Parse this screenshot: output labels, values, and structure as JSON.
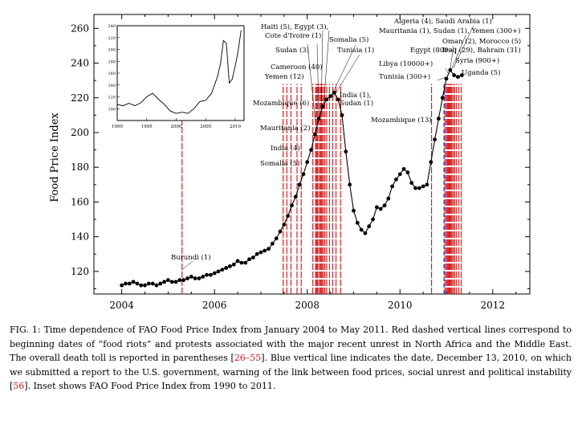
{
  "chart_data": {
    "type": "line",
    "title": "",
    "xlabel": "",
    "ylabel": "Food Price Index",
    "xlim": [
      2003.4,
      2012.8
    ],
    "ylim": [
      107,
      268
    ],
    "xticks": [
      2004,
      2006,
      2008,
      2010,
      2012
    ],
    "yticks": [
      120,
      140,
      160,
      180,
      200,
      220,
      240,
      260
    ],
    "series": [
      {
        "name": "FAO Food Price Index",
        "x": [
          2004.0,
          2004.083,
          2004.167,
          2004.25,
          2004.333,
          2004.417,
          2004.5,
          2004.583,
          2004.667,
          2004.75,
          2004.833,
          2004.917,
          2005.0,
          2005.083,
          2005.167,
          2005.25,
          2005.333,
          2005.417,
          2005.5,
          2005.583,
          2005.667,
          2005.75,
          2005.833,
          2005.917,
          2006.0,
          2006.083,
          2006.167,
          2006.25,
          2006.333,
          2006.417,
          2006.5,
          2006.583,
          2006.667,
          2006.75,
          2006.833,
          2006.917,
          2007.0,
          2007.083,
          2007.167,
          2007.25,
          2007.333,
          2007.417,
          2007.5,
          2007.583,
          2007.667,
          2007.75,
          2007.833,
          2007.917,
          2008.0,
          2008.083,
          2008.167,
          2008.25,
          2008.333,
          2008.417,
          2008.5,
          2008.583,
          2008.667,
          2008.75,
          2008.833,
          2008.917,
          2009.0,
          2009.083,
          2009.167,
          2009.25,
          2009.333,
          2009.417,
          2009.5,
          2009.583,
          2009.667,
          2009.75,
          2009.833,
          2009.917,
          2010.0,
          2010.083,
          2010.167,
          2010.25,
          2010.333,
          2010.417,
          2010.5,
          2010.583,
          2010.667,
          2010.75,
          2010.833,
          2010.917,
          2011.0,
          2011.083,
          2011.167,
          2011.25,
          2011.333
        ],
        "values": [
          112,
          113,
          113,
          114,
          113,
          112,
          112,
          113,
          113,
          112,
          113,
          114,
          115,
          114,
          114,
          115,
          115,
          116,
          117,
          116,
          116,
          117,
          118,
          118,
          119,
          120,
          121,
          122,
          123,
          124,
          126,
          125,
          125,
          127,
          128,
          130,
          131,
          132,
          133,
          136,
          139,
          143,
          147,
          152,
          158,
          163,
          170,
          176,
          183,
          190,
          199,
          208,
          215,
          219,
          221,
          223,
          219,
          210,
          189,
          170,
          155,
          148,
          144,
          142,
          146,
          150,
          157,
          156,
          158,
          162,
          169,
          173,
          176,
          179,
          177,
          171,
          168,
          168,
          169,
          170,
          183,
          196,
          208,
          220,
          231,
          236,
          233,
          232,
          233
        ]
      }
    ],
    "inset": {
      "x": [
        1990,
        1991,
        1992,
        1993,
        1994,
        1995,
        1996,
        1997,
        1998,
        1999,
        2000,
        2001,
        2002,
        2003,
        2004,
        2005,
        2006,
        2007,
        2007.5,
        2008,
        2008.5,
        2009,
        2009.5,
        2010,
        2010.5,
        2011
      ],
      "values": [
        107,
        105,
        109,
        105,
        110,
        120,
        126,
        116,
        107,
        96,
        92,
        94,
        92,
        100,
        112,
        114,
        126,
        154,
        175,
        215,
        210,
        143,
        150,
        172,
        198,
        232
      ],
      "ylim": [
        80,
        240
      ],
      "xticks": [
        1990,
        1995,
        2000,
        2005,
        2010
      ],
      "xtick_labels": [
        "1990",
        "1995",
        "2000",
        "2005",
        "2010"
      ],
      "yticks": [
        100,
        120,
        140,
        160,
        180,
        200,
        220,
        240
      ],
      "ytick_labels": [
        "100",
        "120",
        "140",
        "160",
        "180",
        "200",
        "220",
        "240"
      ]
    },
    "riot_dates": [
      2005.3,
      2007.48,
      2007.56,
      2007.65,
      2007.78,
      2007.87,
      2008.12,
      2008.18,
      2008.2,
      2008.22,
      2008.25,
      2008.28,
      2008.3,
      2008.32,
      2008.35,
      2008.38,
      2008.42,
      2008.48,
      2008.55,
      2008.62,
      2008.72,
      2010.68,
      2010.97,
      2011.0,
      2011.02,
      2011.04,
      2011.06,
      2011.08,
      2011.1,
      2011.12,
      2011.15,
      2011.18,
      2011.22,
      2011.27,
      2011.32
    ],
    "report_date": 2010.95,
    "colors": {
      "riot": "#d81e1e",
      "report": "#1f3fd0",
      "line": "#000000"
    },
    "annotations": [
      {
        "text": "Burundi (1)"
      },
      {
        "text": "Somalia (5)"
      },
      {
        "text": "India (4)"
      },
      {
        "text": "Mauritania (2)"
      },
      {
        "text": "Mozambique (6)"
      },
      {
        "text": "Yemen (12)"
      },
      {
        "text": "Cameroon (40)"
      },
      {
        "text": "Sudan (3)"
      },
      {
        "text": "Cote d'Ivoire (1)"
      },
      {
        "text": "Haiti (5), Egypt (3),"
      },
      {
        "text": "Somalia (5)"
      },
      {
        "text": "Tunisia (1)"
      },
      {
        "text": "India (1),"
      },
      {
        "text": "Sudan (1)"
      },
      {
        "text": "Mozambique (13)"
      },
      {
        "text": "Algeria (4), Saudi Arabia (1)"
      },
      {
        "text": "Mauritania (1), Sudan (1), Yemen (300+)"
      },
      {
        "text": "Oman (2), Morocco (5)"
      },
      {
        "text": "Egypt (800+)"
      },
      {
        "text": "Iraq (29), Bahrain (31)"
      },
      {
        "text": "Libya (10000+)"
      },
      {
        "text": "Syria (900+)"
      },
      {
        "text": "Tunisia (300+)"
      },
      {
        "text": "Uganda (5)"
      }
    ]
  },
  "caption": {
    "p1": "FIG. 1: Time dependence of FAO Food Price Index from January 2004 to May 2011. Red dashed vertical lines correspond to beginning dates of “food riots” and protests associated with the major recent unrest in North Africa and the Middle East. The overall death toll is reported in parentheses [",
    "ref1": "26–55",
    "p2": "]. Blue vertical line indicates the date, December 13, 2010, on which we submitted a report to the U.S. government, warning of the link between food prices, social unrest and political instability [",
    "ref2": "56",
    "p3": "]. Inset shows FAO Food Price Index from 1990 to 2011."
  }
}
